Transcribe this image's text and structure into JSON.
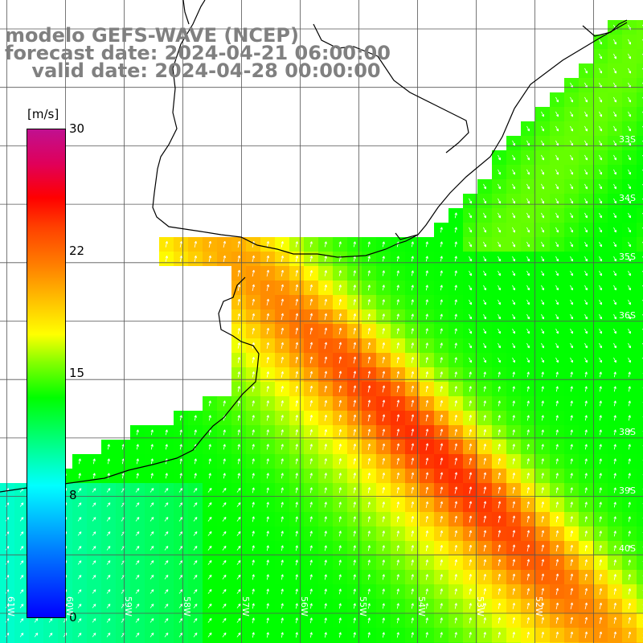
{
  "title": {
    "line1": "modelo GEFS-WAVE (NCEP)",
    "line2": "forecast date: 2024-04-21 06:00:00",
    "line3": "    valid date: 2024-04-28 00:00:00"
  },
  "colorbar": {
    "unit": "[m/s]",
    "ticks": [
      "30",
      "22",
      "15",
      "8",
      "0"
    ],
    "range": [
      0,
      30
    ],
    "colors": [
      "#0000ff",
      "#0080ff",
      "#00ffff",
      "#00ff80",
      "#00ff00",
      "#80ff00",
      "#ffff00",
      "#ffc000",
      "#ff8000",
      "#ff4000",
      "#ff0000",
      "#e0005a",
      "#c01090"
    ]
  },
  "lat_labels": [
    "33S",
    "34S",
    "35S",
    "36S",
    "38S",
    "39S",
    "40S"
  ],
  "lon_labels": [
    "61W",
    "60W",
    "59W",
    "58W",
    "57W",
    "56W",
    "55W",
    "54W",
    "53W",
    "52W"
  ]
}
